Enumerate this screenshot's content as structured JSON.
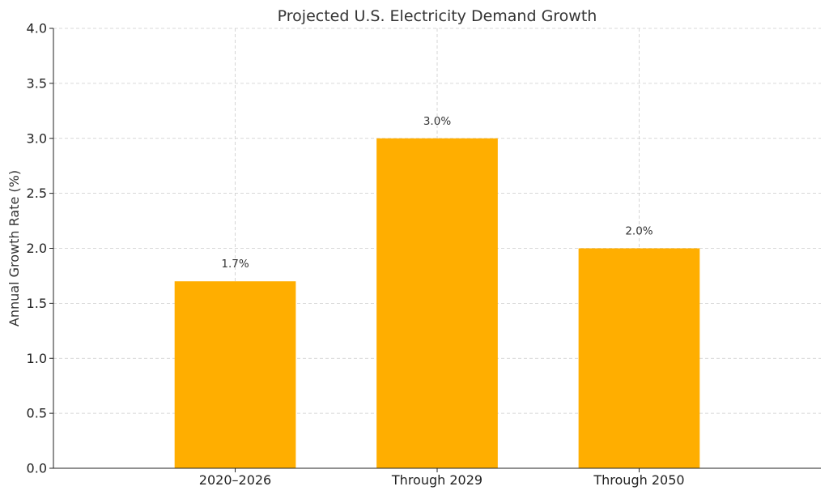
{
  "chart_data": {
    "type": "bar",
    "title": "Projected U.S. Electricity Demand Growth",
    "xlabel": "",
    "ylabel": "Annual Growth Rate (%)",
    "categories": [
      "2020–2026",
      "Through 2029",
      "Through 2050"
    ],
    "values": [
      1.7,
      3.0,
      2.0
    ],
    "data_labels": [
      "1.7%",
      "3.0%",
      "2.0%"
    ],
    "ylim": [
      0,
      4.0
    ],
    "yticks": [
      "0.0",
      "0.5",
      "1.0",
      "1.5",
      "2.0",
      "2.5",
      "3.0",
      "3.5",
      "4.0"
    ],
    "grid": true,
    "bar_color": "#FFAE00"
  }
}
